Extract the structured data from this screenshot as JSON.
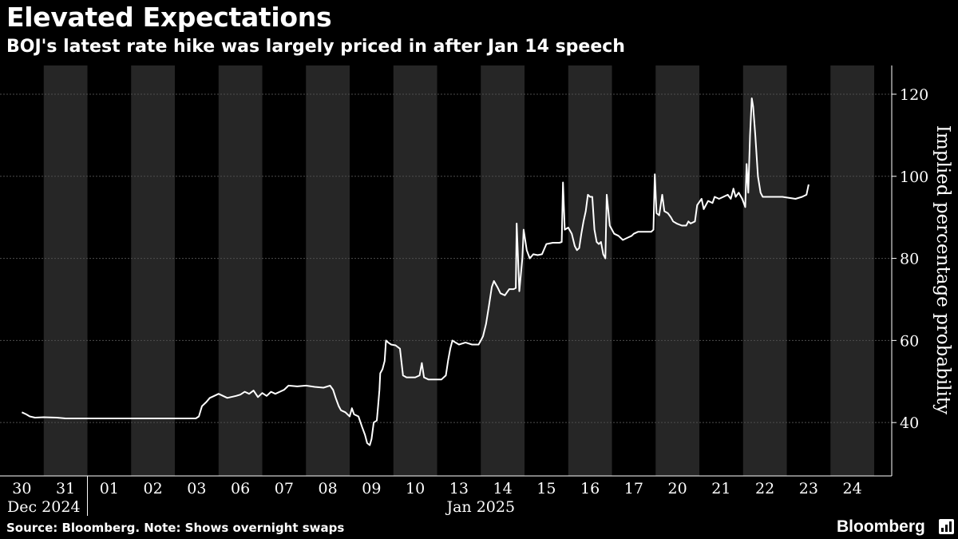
{
  "title": "Elevated Expectations",
  "subtitle": "BOJ's latest rate hike was largely priced in after Jan 14 speech",
  "footer": "Source: Bloomberg. Note: Shows overnight swaps",
  "brand": "Bloomberg",
  "brand_icon": "bar-chart-icon",
  "colors": {
    "background": "#000000",
    "band": "#262626",
    "line": "#ffffff",
    "grid": "#4d4d4d"
  },
  "chart_data": {
    "type": "line",
    "ylabel": "Implied percentage probability",
    "ylim": [
      27,
      127
    ],
    "yticks": [
      40,
      60,
      80,
      100,
      120
    ],
    "grid": true,
    "categories": [
      "30",
      "31",
      "01",
      "02",
      "03",
      "06",
      "07",
      "08",
      "09",
      "10",
      "13",
      "14",
      "15",
      "16",
      "17",
      "20",
      "21",
      "22",
      "23",
      "24"
    ],
    "period_labels": [
      {
        "label": "Dec 2024",
        "start": 0,
        "end": 1
      },
      {
        "label": "Jan 2025",
        "start": 2,
        "end": 19
      }
    ],
    "series": [
      {
        "points": [
          [
            0.0,
            42.5
          ],
          [
            0.1,
            42.0
          ],
          [
            0.18,
            41.5
          ],
          [
            0.3,
            41.2
          ],
          [
            0.5,
            41.3
          ],
          [
            0.8,
            41.2
          ],
          [
            1.0,
            41.0
          ],
          [
            1.3,
            41.0
          ],
          [
            1.6,
            41.0
          ],
          [
            2.0,
            41.0
          ],
          [
            2.5,
            41.0
          ],
          [
            3.0,
            41.0
          ],
          [
            3.4,
            41.0
          ],
          [
            3.7,
            41.0
          ],
          [
            3.98,
            41.0
          ],
          [
            4.05,
            41.5
          ],
          [
            4.12,
            44.0
          ],
          [
            4.22,
            45.0
          ],
          [
            4.3,
            46.0
          ],
          [
            4.4,
            46.5
          ],
          [
            4.5,
            47.0
          ],
          [
            4.7,
            46.0
          ],
          [
            4.9,
            46.5
          ],
          [
            5.0,
            46.8
          ],
          [
            5.1,
            47.5
          ],
          [
            5.2,
            47.0
          ],
          [
            5.3,
            47.8
          ],
          [
            5.4,
            46.2
          ],
          [
            5.5,
            47.2
          ],
          [
            5.6,
            46.5
          ],
          [
            5.7,
            47.5
          ],
          [
            5.8,
            47.0
          ],
          [
            6.0,
            48.0
          ],
          [
            6.1,
            49.0
          ],
          [
            6.3,
            48.8
          ],
          [
            6.5,
            49.0
          ],
          [
            6.7,
            48.7
          ],
          [
            6.9,
            48.5
          ],
          [
            7.05,
            49.0
          ],
          [
            7.12,
            48.0
          ],
          [
            7.18,
            46.0
          ],
          [
            7.25,
            44.0
          ],
          [
            7.3,
            43.0
          ],
          [
            7.4,
            42.5
          ],
          [
            7.5,
            41.5
          ],
          [
            7.55,
            43.5
          ],
          [
            7.6,
            42.0
          ],
          [
            7.7,
            41.5
          ],
          [
            7.78,
            39.0
          ],
          [
            7.85,
            37.0
          ],
          [
            7.9,
            35.0
          ],
          [
            7.96,
            34.5
          ],
          [
            8.0,
            36.0
          ],
          [
            8.05,
            40.0
          ],
          [
            8.12,
            40.5
          ],
          [
            8.15,
            44.0
          ],
          [
            8.18,
            48.0
          ],
          [
            8.2,
            52.0
          ],
          [
            8.25,
            53.0
          ],
          [
            8.3,
            55.0
          ],
          [
            8.33,
            60.0
          ],
          [
            8.38,
            59.5
          ],
          [
            8.45,
            59.0
          ],
          [
            8.55,
            58.8
          ],
          [
            8.65,
            58.0
          ],
          [
            8.72,
            51.5
          ],
          [
            8.8,
            51.0
          ],
          [
            9.0,
            51.0
          ],
          [
            9.1,
            51.5
          ],
          [
            9.15,
            54.5
          ],
          [
            9.2,
            51.0
          ],
          [
            9.3,
            50.5
          ],
          [
            9.4,
            50.5
          ],
          [
            9.5,
            50.5
          ],
          [
            9.6,
            50.5
          ],
          [
            9.7,
            51.5
          ],
          [
            9.75,
            55.0
          ],
          [
            9.8,
            58.0
          ],
          [
            9.85,
            60.0
          ],
          [
            9.92,
            59.5
          ],
          [
            10.0,
            59.0
          ],
          [
            10.15,
            59.5
          ],
          [
            10.3,
            59.0
          ],
          [
            10.45,
            59.0
          ],
          [
            10.5,
            60.0
          ],
          [
            10.55,
            61.0
          ],
          [
            10.62,
            64.0
          ],
          [
            10.68,
            68.0
          ],
          [
            10.75,
            73.0
          ],
          [
            10.8,
            74.5
          ],
          [
            10.88,
            73.0
          ],
          [
            10.95,
            71.5
          ],
          [
            11.05,
            71.0
          ],
          [
            11.15,
            72.5
          ],
          [
            11.25,
            72.5
          ],
          [
            11.3,
            72.8
          ],
          [
            11.32,
            88.5
          ],
          [
            11.38,
            72.0
          ],
          [
            11.45,
            80.0
          ],
          [
            11.48,
            87.0
          ],
          [
            11.55,
            82.0
          ],
          [
            11.62,
            80.0
          ],
          [
            11.7,
            81.0
          ],
          [
            11.8,
            80.8
          ],
          [
            11.9,
            81.0
          ],
          [
            12.0,
            83.5
          ],
          [
            12.15,
            83.8
          ],
          [
            12.3,
            83.8
          ],
          [
            12.35,
            84.0
          ],
          [
            12.38,
            98.5
          ],
          [
            12.42,
            87.0
          ],
          [
            12.5,
            87.5
          ],
          [
            12.58,
            86.0
          ],
          [
            12.65,
            83.0
          ],
          [
            12.7,
            82.0
          ],
          [
            12.75,
            82.5
          ],
          [
            12.8,
            86.0
          ],
          [
            12.85,
            89.0
          ],
          [
            12.9,
            91.5
          ],
          [
            12.95,
            95.5
          ],
          [
            13.0,
            95.0
          ],
          [
            13.05,
            95.0
          ],
          [
            13.1,
            87.0
          ],
          [
            13.15,
            84.0
          ],
          [
            13.2,
            83.5
          ],
          [
            13.25,
            84.0
          ],
          [
            13.3,
            81.0
          ],
          [
            13.35,
            80.0
          ],
          [
            13.38,
            95.5
          ],
          [
            13.45,
            88.0
          ],
          [
            13.55,
            86.0
          ],
          [
            13.65,
            85.5
          ],
          [
            13.75,
            84.5
          ],
          [
            13.85,
            85.0
          ],
          [
            13.95,
            85.5
          ],
          [
            14.0,
            86.0
          ],
          [
            14.1,
            86.5
          ],
          [
            14.2,
            86.5
          ],
          [
            14.4,
            86.5
          ],
          [
            14.45,
            87.0
          ],
          [
            14.48,
            100.5
          ],
          [
            14.52,
            91.0
          ],
          [
            14.58,
            90.5
          ],
          [
            14.65,
            95.5
          ],
          [
            14.7,
            91.5
          ],
          [
            14.78,
            91.0
          ],
          [
            14.85,
            90.0
          ],
          [
            14.9,
            89.0
          ],
          [
            14.98,
            88.5
          ],
          [
            15.1,
            88.0
          ],
          [
            15.2,
            88.0
          ],
          [
            15.25,
            89.0
          ],
          [
            15.3,
            88.5
          ],
          [
            15.4,
            89.0
          ],
          [
            15.45,
            93.0
          ],
          [
            15.55,
            94.5
          ],
          [
            15.6,
            92.0
          ],
          [
            15.7,
            94.0
          ],
          [
            15.8,
            93.5
          ],
          [
            15.85,
            95.0
          ],
          [
            15.95,
            94.5
          ],
          [
            16.05,
            95.0
          ],
          [
            16.15,
            95.5
          ],
          [
            16.22,
            94.5
          ],
          [
            16.28,
            97.0
          ],
          [
            16.33,
            95.0
          ],
          [
            16.4,
            96.0
          ],
          [
            16.48,
            94.5
          ],
          [
            16.55,
            92.5
          ],
          [
            16.58,
            103.0
          ],
          [
            16.62,
            96.0
          ],
          [
            16.66,
            110.0
          ],
          [
            16.7,
            119.0
          ],
          [
            16.73,
            117.0
          ],
          [
            16.78,
            110.0
          ],
          [
            16.84,
            100.0
          ],
          [
            16.9,
            96.0
          ],
          [
            16.95,
            95.0
          ],
          [
            17.1,
            95.0
          ],
          [
            17.4,
            95.0
          ],
          [
            17.7,
            94.5
          ],
          [
            17.85,
            95.0
          ],
          [
            17.95,
            95.5
          ],
          [
            18.0,
            98.0
          ]
        ]
      }
    ]
  }
}
